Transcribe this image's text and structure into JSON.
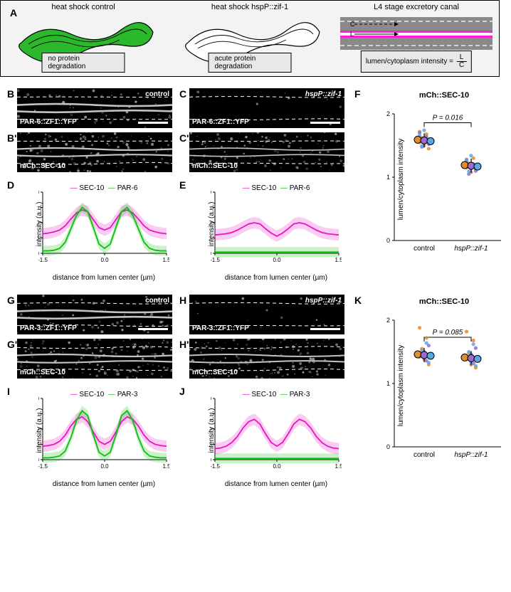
{
  "panelA": {
    "cell1_title": "heat shock control",
    "cell1_box": "no protein degradation",
    "cell2_title": "heat shock hspP::zif-1",
    "cell2_box": "acute protein degradation",
    "cell3_title": "L4 stage excretory canal",
    "cell3_eq_lhs": "lumen/cytoplasm intensity =",
    "cell3_eq_num": "L",
    "cell3_eq_den": "C",
    "cell3_C": "C",
    "cell3_L": "L",
    "worm_fill": "#2bb82b",
    "worm_stroke": "#000000",
    "canal_bg": "#8a8a8a",
    "canal_lumen": "#ff1ed6",
    "canal_lumen_core": "#ffffff"
  },
  "labels": {
    "A": "A",
    "B": "B",
    "Bp": "B'",
    "C": "C",
    "Cp": "C'",
    "D": "D",
    "E": "E",
    "F": "F",
    "G": "G",
    "Gp": "G'",
    "H": "H",
    "Hp": "H'",
    "I": "I",
    "J": "J",
    "K": "K"
  },
  "micro": {
    "B_tr": "control",
    "B_bl": "PAR-6::ZF1::YFP",
    "C_tr": "hspP::zif-1",
    "C_bl": "PAR-6::ZF1::YFP",
    "Bp_bl": "mCh::SEC-10",
    "Cp_bl": "mCh::SEC-10",
    "G_tr": "control",
    "G_bl": "PAR-3::ZF1::YFP",
    "H_tr": "hspP::zif-1",
    "H_bl": "PAR-3::ZF1::YFP",
    "Gp_bl": "mCh::SEC-10",
    "Hp_bl": "mCh::SEC-10"
  },
  "chart_common": {
    "ylabel": "intensity (a.u.)",
    "xlabel": "distance from lumen center (µm)",
    "xlim": [
      -1.5,
      1.5
    ],
    "ylim": [
      0,
      100
    ],
    "xticks": [
      -1.5,
      0.0,
      1.5
    ],
    "yticks": [
      0,
      25,
      50,
      75,
      100
    ],
    "color_sec10": "#e815c3",
    "color_par": "#0dbf0d",
    "axis_color": "#000",
    "tick_fontsize": 9,
    "label_fontsize": 10
  },
  "chartD": {
    "legend_a": "SEC-10",
    "legend_b": "PAR-6",
    "sec10": [
      32,
      33,
      35,
      38,
      45,
      56,
      66,
      71,
      68,
      55,
      42,
      38,
      42,
      55,
      68,
      71,
      66,
      56,
      45,
      38,
      35,
      33,
      32
    ],
    "par6": [
      4,
      4,
      5,
      8,
      18,
      40,
      62,
      75,
      68,
      42,
      15,
      8,
      15,
      42,
      68,
      75,
      62,
      40,
      18,
      8,
      5,
      4,
      4
    ]
  },
  "chartE": {
    "legend_a": "SEC-10",
    "legend_b": "PAR-6",
    "sec10": [
      30,
      31,
      32,
      34,
      38,
      43,
      48,
      50,
      48,
      40,
      33,
      28,
      33,
      40,
      48,
      50,
      48,
      43,
      38,
      34,
      32,
      31,
      30
    ],
    "par6": [
      2,
      2,
      2,
      2,
      2,
      2,
      2,
      2,
      2,
      2,
      2,
      2,
      2,
      2,
      2,
      2,
      2,
      2,
      2,
      2,
      2,
      2,
      2
    ]
  },
  "chartI": {
    "legend_a": "SEC-10",
    "legend_b": "PAR-3",
    "sec10": [
      22,
      23,
      25,
      30,
      40,
      55,
      66,
      70,
      62,
      45,
      30,
      25,
      30,
      45,
      62,
      70,
      66,
      55,
      40,
      30,
      25,
      23,
      22
    ],
    "par3": [
      3,
      3,
      4,
      6,
      14,
      36,
      64,
      80,
      72,
      40,
      12,
      6,
      12,
      40,
      72,
      80,
      64,
      36,
      14,
      6,
      4,
      3,
      3
    ]
  },
  "chartJ": {
    "legend_a": "SEC-10",
    "legend_b": "PAR-3",
    "sec10": [
      18,
      19,
      22,
      28,
      38,
      52,
      62,
      66,
      58,
      42,
      28,
      22,
      28,
      42,
      58,
      66,
      62,
      52,
      38,
      28,
      22,
      19,
      18
    ],
    "par3": [
      2,
      2,
      2,
      2,
      2,
      2,
      2,
      2,
      2,
      2,
      2,
      2,
      2,
      2,
      2,
      2,
      2,
      2,
      2,
      2,
      2,
      2,
      2
    ]
  },
  "scatterF": {
    "title": "mCh::SEC-10",
    "ylabel": "lumen/cytoplasm intensity",
    "pval": "P = 0.016",
    "ylim": [
      0,
      2
    ],
    "yticks": [
      0,
      1,
      2
    ],
    "groups": [
      "control",
      "hspP::zif-1"
    ],
    "means": [
      1.58,
      1.18
    ],
    "colors": [
      "#e28c2b",
      "#9b6bd1",
      "#5aa6e6"
    ],
    "points_control": [
      [
        0,
        1.55
      ],
      [
        0,
        1.62
      ],
      [
        0,
        1.5
      ],
      [
        0,
        1.68
      ],
      [
        0,
        1.45
      ],
      [
        0,
        1.72
      ],
      [
        0,
        1.6
      ],
      [
        1,
        1.58
      ],
      [
        1,
        1.64
      ],
      [
        1,
        1.52
      ],
      [
        1,
        1.7
      ],
      [
        1,
        1.48
      ],
      [
        2,
        1.56
      ],
      [
        2,
        1.61
      ],
      [
        2,
        1.53
      ],
      [
        2,
        1.66
      ],
      [
        2,
        1.49
      ],
      [
        2,
        1.74
      ]
    ],
    "points_hsp": [
      [
        0,
        1.15
      ],
      [
        0,
        1.22
      ],
      [
        0,
        1.08
      ],
      [
        0,
        1.3
      ],
      [
        0,
        1.12
      ],
      [
        0,
        1.25
      ],
      [
        0,
        1.18
      ],
      [
        1,
        1.14
      ],
      [
        1,
        1.2
      ],
      [
        1,
        1.1
      ],
      [
        1,
        1.28
      ],
      [
        1,
        1.05
      ],
      [
        2,
        1.16
      ],
      [
        2,
        1.21
      ],
      [
        2,
        1.12
      ],
      [
        2,
        1.26
      ],
      [
        2,
        1.09
      ],
      [
        2,
        1.34
      ]
    ]
  },
  "scatterK": {
    "title": "mCh::SEC-10",
    "ylabel": "lumen/cytoplasm intensity",
    "pval": "P = 0.085",
    "ylim": [
      0,
      2
    ],
    "yticks": [
      0,
      1,
      2
    ],
    "groups": [
      "control",
      "hspP::zif-1"
    ],
    "means": [
      1.45,
      1.4
    ],
    "colors": [
      "#e28c2b",
      "#9b6bd1",
      "#5aa6e6"
    ],
    "points_control": [
      [
        0,
        1.42
      ],
      [
        0,
        1.55
      ],
      [
        0,
        1.38
      ],
      [
        0,
        1.72
      ],
      [
        0,
        1.3
      ],
      [
        0,
        1.88
      ],
      [
        1,
        1.44
      ],
      [
        1,
        1.5
      ],
      [
        1,
        1.36
      ],
      [
        1,
        1.6
      ],
      [
        2,
        1.46
      ],
      [
        2,
        1.52
      ],
      [
        2,
        1.4
      ],
      [
        2,
        1.64
      ],
      [
        2,
        1.33
      ]
    ],
    "points_hsp": [
      [
        0,
        1.38
      ],
      [
        0,
        1.48
      ],
      [
        0,
        1.3
      ],
      [
        0,
        1.68
      ],
      [
        0,
        1.25
      ],
      [
        0,
        1.82
      ],
      [
        1,
        1.4
      ],
      [
        1,
        1.46
      ],
      [
        1,
        1.32
      ],
      [
        1,
        1.56
      ],
      [
        2,
        1.42
      ],
      [
        2,
        1.5
      ],
      [
        2,
        1.34
      ],
      [
        2,
        1.62
      ],
      [
        2,
        1.28
      ]
    ]
  }
}
